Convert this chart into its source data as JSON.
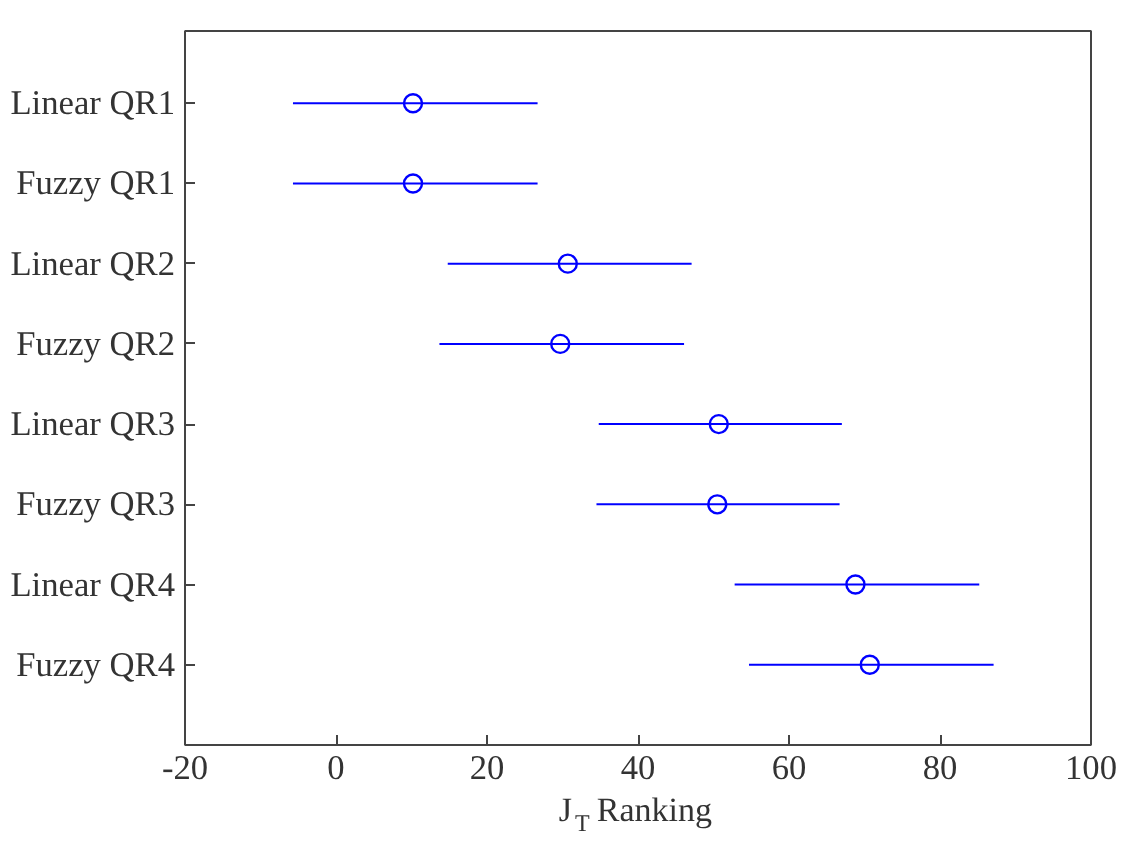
{
  "chart_data": {
    "type": "scatter",
    "orientation": "horizontal",
    "xlabel": "J$_{T}$ Ranking",
    "categories": [
      "Linear QR1",
      "Fuzzy QR1",
      "Linear QR2",
      "Fuzzy QR2",
      "Linear QR3",
      "Fuzzy QR3",
      "Linear QR4",
      "Fuzzy QR4"
    ],
    "values": [
      10.2,
      10.2,
      30.7,
      29.7,
      50.7,
      50.5,
      68.8,
      70.7
    ],
    "errors": [
      [
        -5.7,
        26.7
      ],
      [
        -5.7,
        26.7
      ],
      [
        14.8,
        47.1
      ],
      [
        13.7,
        46.1
      ],
      [
        34.8,
        67.0
      ],
      [
        34.5,
        66.7
      ],
      [
        52.8,
        85.2
      ],
      [
        54.7,
        87.1
      ]
    ],
    "color": "#0000ff",
    "marker": "circle",
    "grid": false,
    "xlim": [
      -20,
      100
    ],
    "xticks": [
      -20,
      0,
      20,
      40,
      60,
      80,
      100
    ]
  }
}
